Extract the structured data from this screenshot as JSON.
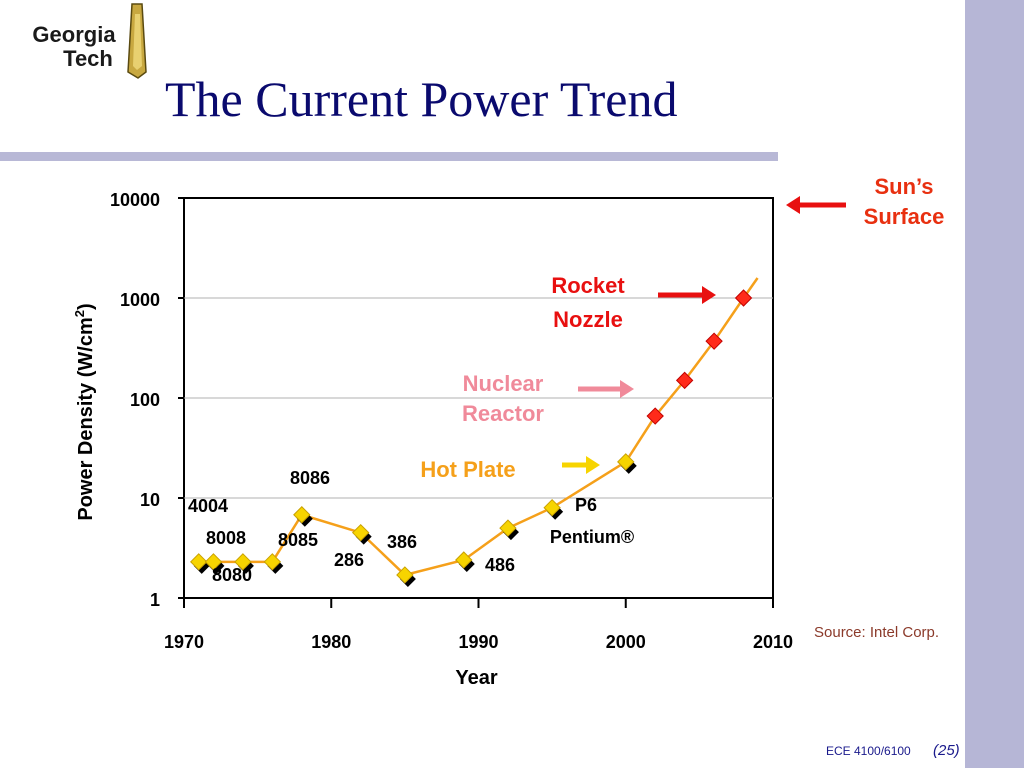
{
  "slide": {
    "title": "The Current Power Trend",
    "logo_line1": "Georgia",
    "logo_line2": "Tech",
    "source": "Source: Intel Corp.",
    "course": "ECE 4100/6100",
    "page": "(25)",
    "colors": {
      "title": "#0a0a6e",
      "line": "#f5a01a",
      "marker_yellow": "#f7d400",
      "marker_red": "#ff2a1a",
      "sidebar": "#b6b6d6"
    }
  },
  "chart_data": {
    "type": "scatter",
    "xlabel": "Year",
    "ylabel": "Power Density (W/cm",
    "ylabel_sup": "2",
    "ylabel_close": ")",
    "xlim": [
      1970,
      2010
    ],
    "ylim": [
      1,
      10000
    ],
    "yscale": "log",
    "x_ticks": [
      "1970",
      "1980",
      "1990",
      "2000",
      "2010"
    ],
    "y_ticks": [
      "1",
      "10",
      "100",
      "1000",
      "10000"
    ],
    "grid": true,
    "series": [
      {
        "color": "#f7d400",
        "points": [
          {
            "x": 1971,
            "y": 2.3,
            "label": "4004"
          },
          {
            "x": 1972,
            "y": 2.3,
            "label": "8008"
          },
          {
            "x": 1974,
            "y": 2.3,
            "label": "8080"
          },
          {
            "x": 1976,
            "y": 2.3,
            "label": "8085"
          },
          {
            "x": 1978,
            "y": 6.8,
            "label": "8086"
          },
          {
            "x": 1982,
            "y": 4.5,
            "label": "286"
          },
          {
            "x": 1985,
            "y": 1.7,
            "label": "386"
          },
          {
            "x": 1989,
            "y": 2.4,
            "label": "486"
          },
          {
            "x": 1992,
            "y": 5.0,
            "label": ""
          },
          {
            "x": 1995,
            "y": 8.0,
            "label": "P6"
          },
          {
            "x": 2000,
            "y": 23,
            "label": ""
          }
        ]
      },
      {
        "color": "#ff2a1a",
        "points": [
          {
            "x": 2002,
            "y": 66,
            "label": ""
          },
          {
            "x": 2004,
            "y": 150,
            "label": ""
          },
          {
            "x": 2006,
            "y": 370,
            "label": ""
          },
          {
            "x": 2008,
            "y": 1000,
            "label": ""
          }
        ]
      }
    ],
    "extra_labels": {
      "pentium": "Pentium®"
    },
    "annotations": [
      {
        "lines": [
          "Hot Plate"
        ],
        "color": "#f5a01a",
        "y": 14,
        "arrow_color": "#f7d400"
      },
      {
        "lines": [
          "Nuclear",
          "Reactor"
        ],
        "color": "#f08a9a",
        "y": 100,
        "arrow_color": "#f08a9a"
      },
      {
        "lines": [
          "Rocket",
          "Nozzle"
        ],
        "color": "#e81010",
        "y": 1000,
        "arrow_color": "#e81010"
      },
      {
        "lines": [
          "Sun’s",
          "Surface"
        ],
        "color": "#e83010",
        "y": 10000,
        "arrow_color": "#e81010"
      }
    ]
  }
}
